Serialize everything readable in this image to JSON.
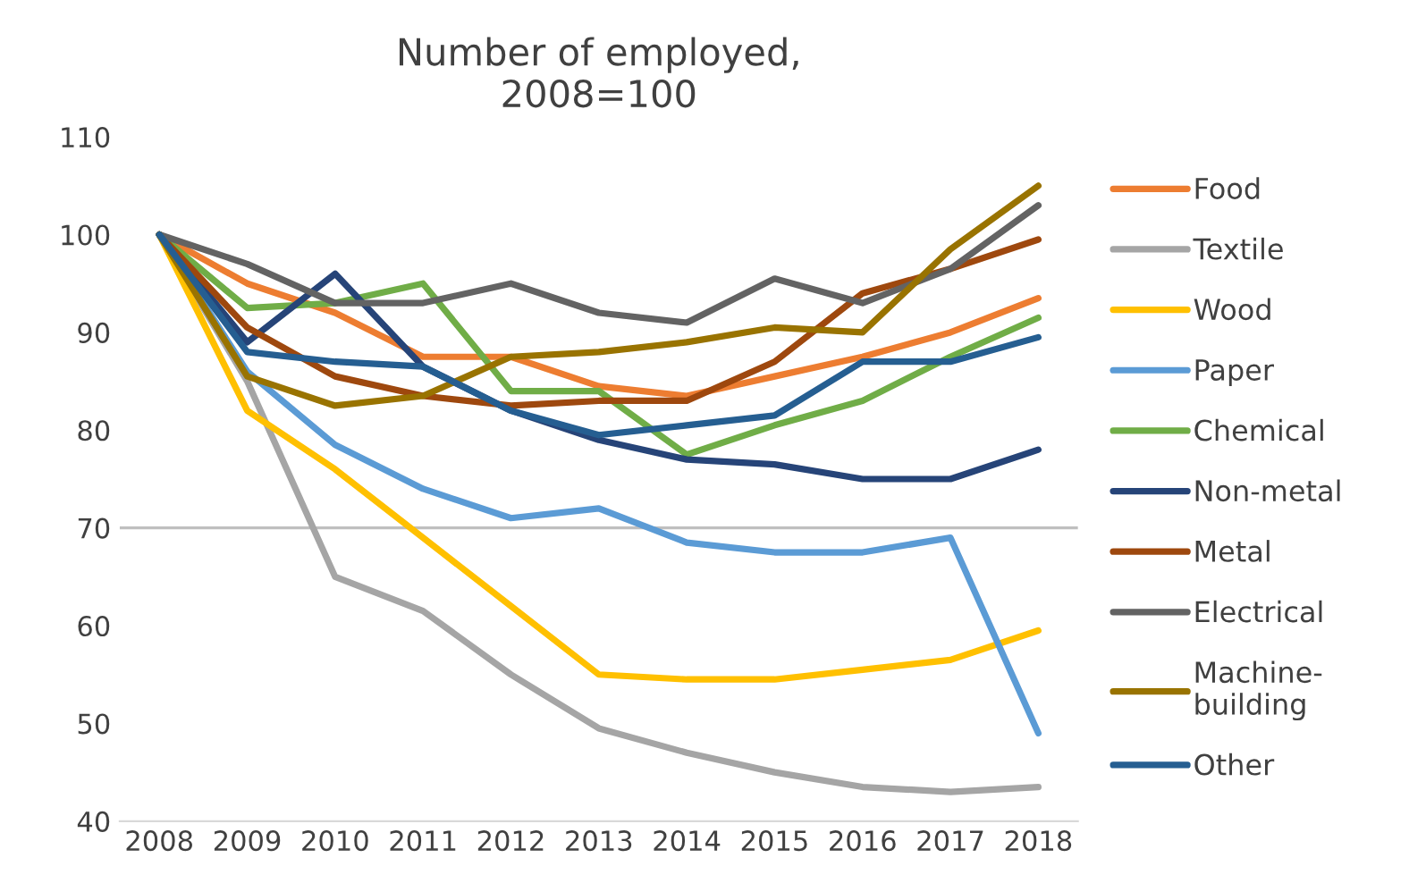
{
  "chart_data": {
    "type": "line",
    "title": "Number of employed,\n2008=100",
    "categories": [
      "2008",
      "2009",
      "2010",
      "2011",
      "2012",
      "2013",
      "2014",
      "2015",
      "2016",
      "2017",
      "2018"
    ],
    "ylim": [
      40,
      110
    ],
    "yticks": [
      40,
      50,
      60,
      70,
      80,
      90,
      100,
      110
    ],
    "grid": false,
    "legend": "right",
    "marker": "none",
    "line_style": "solid",
    "ref_lines": [
      {
        "axis": "y",
        "value": 70,
        "color": "#bfbfbf"
      }
    ],
    "series": [
      {
        "name": "Food",
        "color": "#ed7d31",
        "values": [
          100,
          95,
          92,
          87.5,
          87.5,
          84.5,
          83.5,
          85.5,
          87.5,
          90,
          93.5
        ]
      },
      {
        "name": "Textile",
        "color": "#a5a5a5",
        "values": [
          100,
          85,
          65,
          61.5,
          55,
          49.5,
          47,
          45,
          43.5,
          43,
          43.5
        ]
      },
      {
        "name": "Wood",
        "color": "#ffc000",
        "values": [
          100,
          82,
          76,
          69,
          62,
          55,
          54.5,
          54.5,
          55.5,
          56.5,
          59.5
        ]
      },
      {
        "name": "Paper",
        "color": "#5b9bd5",
        "values": [
          100,
          86,
          78.5,
          74,
          71,
          72,
          68.5,
          67.5,
          67.5,
          69,
          49
        ]
      },
      {
        "name": "Chemical",
        "color": "#70ad47",
        "values": [
          100,
          92.5,
          93,
          95,
          84,
          84,
          77.5,
          80.5,
          83,
          87.5,
          91.5
        ]
      },
      {
        "name": "Non-metal",
        "color": "#264478",
        "values": [
          100,
          89,
          96,
          86.5,
          82,
          79,
          77,
          76.5,
          75,
          75,
          78
        ]
      },
      {
        "name": "Metal",
        "color": "#9e480e",
        "values": [
          100,
          90.5,
          85.5,
          83.5,
          82.5,
          83,
          83,
          87,
          94,
          96.5,
          99.5
        ]
      },
      {
        "name": "Electrical",
        "color": "#636363",
        "values": [
          100,
          97,
          93,
          93,
          95,
          92,
          91,
          95.5,
          93,
          96.5,
          103
        ]
      },
      {
        "name": "Machine-\nbuilding",
        "color": "#997300",
        "values": [
          100,
          85.5,
          82.5,
          83.5,
          87.5,
          88,
          89,
          90.5,
          90,
          98.5,
          105
        ]
      },
      {
        "name": "Other",
        "color": "#255e91",
        "values": [
          100,
          88,
          87,
          86.5,
          82,
          79.5,
          80.5,
          81.5,
          87,
          87,
          89.5
        ]
      }
    ]
  }
}
